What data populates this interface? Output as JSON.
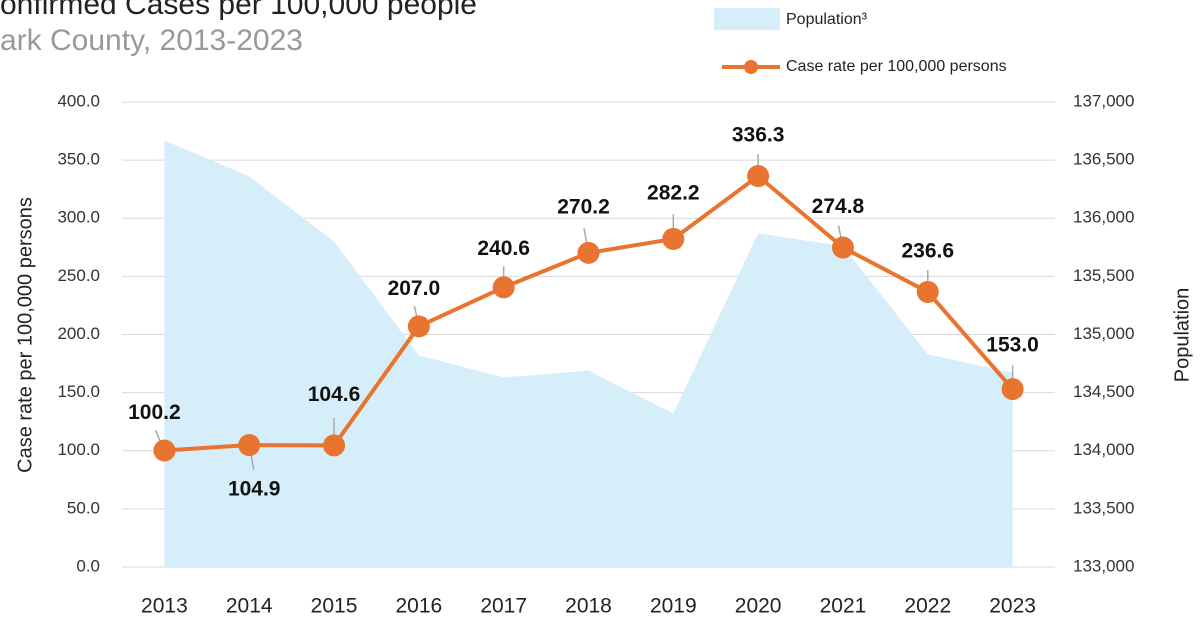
{
  "chart_data": {
    "type": "line",
    "title": "onfirmed Cases per 100,000 people",
    "subtitle": "ark County, 2013-2023",
    "y_label": "Case rate per 100,000 persons",
    "y2_label": "Population",
    "categories": [
      "2013",
      "2014",
      "2015",
      "2016",
      "2017",
      "2018",
      "2019",
      "2020",
      "2021",
      "2022",
      "2023"
    ],
    "series": [
      {
        "name": "Population³",
        "type": "area",
        "axis": "y2",
        "color": "#d5eefa",
        "values": [
          136670,
          136360,
          135800,
          134820,
          134630,
          134690,
          134320,
          135870,
          135760,
          134830,
          134670
        ]
      },
      {
        "name": "Case rate per 100,000 persons",
        "type": "line",
        "color": "#e8742f",
        "values": [
          100.2,
          104.9,
          104.6,
          207.0,
          240.6,
          270.2,
          282.2,
          336.3,
          274.8,
          236.6,
          153.0
        ],
        "value_labels": [
          "100.2",
          "104.9",
          "104.6",
          "207.0",
          "240.6",
          "270.2",
          "282.2",
          "336.3",
          "274.8",
          "236.6",
          "153.0"
        ]
      }
    ],
    "ylim": [
      0,
      400
    ],
    "yticks": [
      {
        "value": 0,
        "label": "0.0"
      },
      {
        "value": 50,
        "label": "50.0"
      },
      {
        "value": 100,
        "label": "100.0"
      },
      {
        "value": 150,
        "label": "150.0"
      },
      {
        "value": 200,
        "label": "200.0"
      },
      {
        "value": 250,
        "label": "250.0"
      },
      {
        "value": 300,
        "label": "300.0"
      },
      {
        "value": 350,
        "label": "350.0"
      },
      {
        "value": 400,
        "label": "400.0"
      }
    ],
    "y2lim": [
      133000,
      137000
    ],
    "y2ticks": [
      {
        "value": 133000,
        "label": "133,000"
      },
      {
        "value": 133500,
        "label": "133,500"
      },
      {
        "value": 134000,
        "label": "134,000"
      },
      {
        "value": 134500,
        "label": "134,500"
      },
      {
        "value": 135000,
        "label": "135,000"
      },
      {
        "value": 135500,
        "label": "135,500"
      },
      {
        "value": 136000,
        "label": "136,000"
      },
      {
        "value": 136500,
        "label": "136,500"
      },
      {
        "value": 137000,
        "label": "137,000"
      }
    ],
    "grid": true,
    "legend": "top-right"
  }
}
